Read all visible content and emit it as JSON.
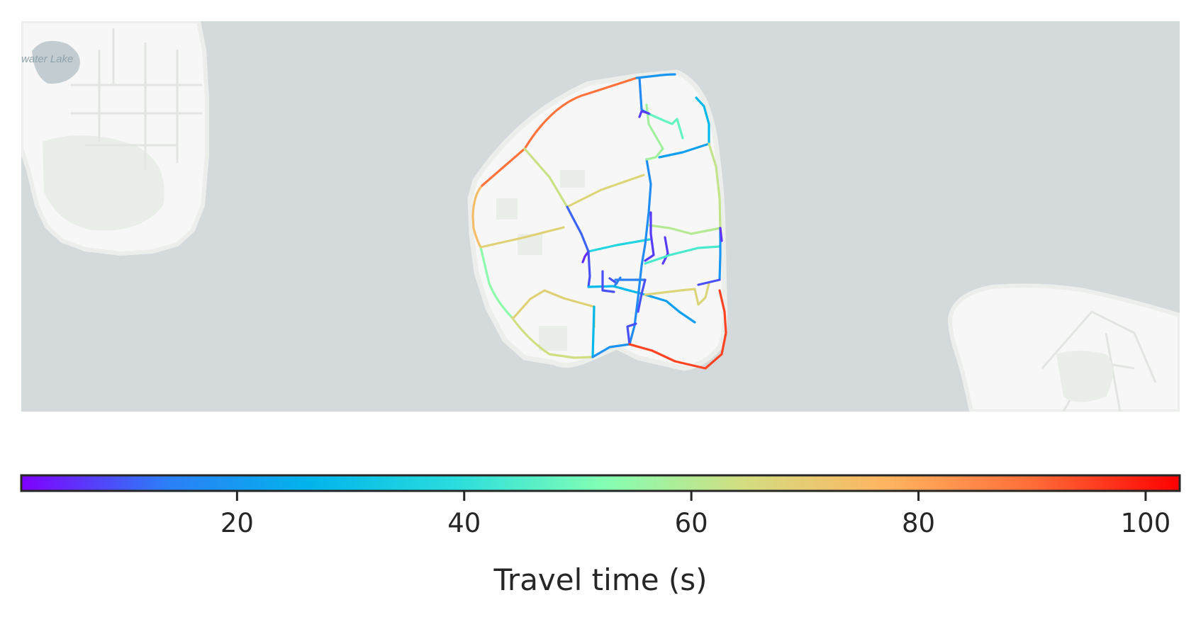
{
  "map": {
    "place_label": "water Lake",
    "colors": {
      "water": "#d4dadc",
      "land": "#f6f7f6",
      "land_edge": "#eceeec",
      "park": "#e9eee9",
      "road_faint": "#e2e5e2"
    }
  },
  "colorbar": {
    "label": "Travel time (s)",
    "min": 1,
    "max": 103,
    "ticks": [
      20,
      40,
      60,
      80,
      100
    ],
    "colormap": "rainbow",
    "colormap_stops": [
      "#8000ff",
      "#2c7ef7",
      "#00b5eb",
      "#2adddd",
      "#81ffb4",
      "#d4dd80",
      "#ffb360",
      "#ff6b37",
      "#ff0000"
    ]
  }
}
